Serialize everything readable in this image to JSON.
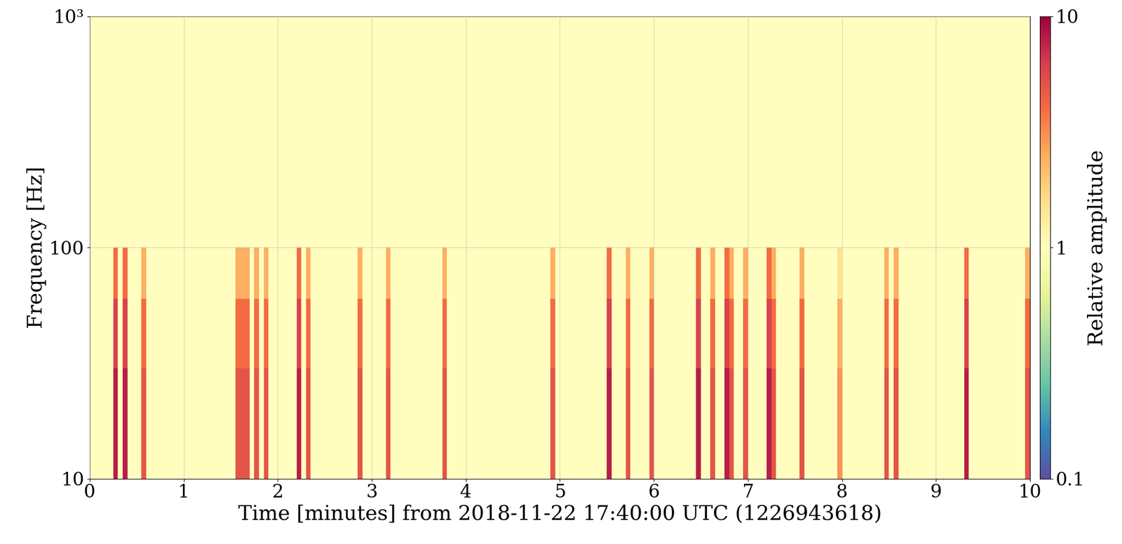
{
  "chart_data": {
    "type": "heatmap",
    "xlabel": "Time [minutes] from 2018-11-22 17:40:00 UTC (1226943618)",
    "ylabel": "Frequency [Hz]",
    "xlim": [
      0,
      10
    ],
    "xticks": [
      0,
      1,
      2,
      3,
      4,
      5,
      6,
      7,
      8,
      9,
      10
    ],
    "ylim": [
      10,
      1000
    ],
    "yticks": [
      10,
      100,
      {
        "value": 1000,
        "label": "10³"
      }
    ],
    "log": "y",
    "grid": true,
    "y_edges": [
      10,
      30,
      60,
      100,
      1000
    ],
    "cells": [
      [
        1,
        1,
        1,
        1,
        1,
        8,
        1,
        8,
        1,
        1,
        1,
        5,
        1,
        1,
        1,
        1,
        1,
        1,
        1,
        1,
        1,
        1,
        1,
        1,
        1,
        1,
        1,
        1,
        1,
        1,
        1,
        5,
        5,
        5,
        1,
        5,
        1,
        5,
        1,
        1,
        1,
        1,
        1,
        1,
        8,
        1,
        5,
        1,
        1,
        1,
        1,
        1,
        1,
        1,
        1,
        1,
        1,
        5,
        1,
        1,
        1,
        1,
        1,
        5,
        1,
        1,
        1,
        1,
        1,
        1,
        1,
        1,
        1,
        1,
        1,
        5,
        1,
        1,
        1,
        1,
        1,
        1,
        1,
        1,
        1,
        1,
        1,
        1,
        1,
        1,
        1,
        1,
        1,
        1,
        1,
        1,
        1,
        1,
        5,
        1,
        1,
        1,
        1,
        1,
        1,
        1,
        1,
        1,
        1,
        1,
        8,
        1,
        1,
        1,
        5,
        1,
        1,
        1,
        1,
        5,
        1,
        1,
        1,
        1,
        1,
        1,
        1,
        1,
        1,
        8,
        1,
        1,
        5,
        1,
        1,
        8,
        5,
        1,
        1,
        5,
        1,
        1,
        1,
        1,
        8,
        5,
        1,
        1,
        1,
        1,
        1,
        5,
        1,
        1,
        1,
        1,
        1,
        1,
        1,
        3,
        1,
        1,
        1,
        1,
        1,
        1,
        1,
        1,
        1,
        5,
        1,
        5,
        1,
        1,
        1,
        1,
        1,
        1,
        1,
        1,
        1,
        1,
        1,
        1,
        1,
        1,
        8,
        1,
        1,
        1,
        1,
        1,
        1,
        1,
        1,
        1,
        1,
        1,
        1,
        5
      ],
      [
        1,
        1,
        1,
        1,
        1,
        6,
        1,
        6,
        1,
        1,
        1,
        4,
        1,
        1,
        1,
        1,
        1,
        1,
        1,
        1,
        1,
        1,
        1,
        1,
        1,
        1,
        1,
        1,
        1,
        1,
        1,
        4,
        4,
        4,
        1,
        4,
        1,
        4,
        1,
        1,
        1,
        1,
        1,
        1,
        6,
        1,
        4,
        1,
        1,
        1,
        1,
        1,
        1,
        1,
        1,
        1,
        1,
        4,
        1,
        1,
        1,
        1,
        1,
        4,
        1,
        1,
        1,
        1,
        1,
        1,
        1,
        1,
        1,
        1,
        1,
        4,
        1,
        1,
        1,
        1,
        1,
        1,
        1,
        1,
        1,
        1,
        1,
        1,
        1,
        1,
        1,
        1,
        1,
        1,
        1,
        1,
        1,
        1,
        4,
        1,
        1,
        1,
        1,
        1,
        1,
        1,
        1,
        1,
        1,
        1,
        6,
        1,
        1,
        1,
        4,
        1,
        1,
        1,
        1,
        4,
        1,
        1,
        1,
        1,
        1,
        1,
        1,
        1,
        1,
        6,
        1,
        1,
        4,
        1,
        1,
        6,
        4,
        1,
        1,
        4,
        1,
        1,
        1,
        1,
        6,
        4,
        1,
        1,
        1,
        1,
        1,
        4,
        1,
        1,
        1,
        1,
        1,
        1,
        1,
        2.5,
        1,
        1,
        1,
        1,
        1,
        1,
        1,
        1,
        1,
        4,
        1,
        4,
        1,
        1,
        1,
        1,
        1,
        1,
        1,
        1,
        1,
        1,
        1,
        1,
        1,
        1,
        6,
        1,
        1,
        1,
        1,
        1,
        1,
        1,
        1,
        1,
        1,
        1,
        1,
        4
      ],
      [
        1,
        1,
        1,
        1,
        1,
        4,
        1,
        4,
        1,
        1,
        1,
        2.5,
        1,
        1,
        1,
        1,
        1,
        1,
        1,
        1,
        1,
        1,
        1,
        1,
        1,
        1,
        1,
        1,
        1,
        1,
        1,
        2.5,
        2.5,
        2.5,
        1,
        2.5,
        1,
        2.5,
        1,
        1,
        1,
        1,
        1,
        1,
        4,
        1,
        2.5,
        1,
        1,
        1,
        1,
        1,
        1,
        1,
        1,
        1,
        1,
        2.5,
        1,
        1,
        1,
        1,
        1,
        2.5,
        1,
        1,
        1,
        1,
        1,
        1,
        1,
        1,
        1,
        1,
        1,
        2.5,
        1,
        1,
        1,
        1,
        1,
        1,
        1,
        1,
        1,
        1,
        1,
        1,
        1,
        1,
        1,
        1,
        1,
        1,
        1,
        1,
        1,
        1,
        2.5,
        1,
        1,
        1,
        1,
        1,
        1,
        1,
        1,
        1,
        1,
        1,
        4,
        1,
        1,
        1,
        2.5,
        1,
        1,
        1,
        1,
        2.5,
        1,
        1,
        1,
        1,
        1,
        1,
        1,
        1,
        1,
        4,
        1,
        1,
        2.5,
        1,
        1,
        4,
        2.5,
        1,
        1,
        2.5,
        1,
        1,
        1,
        1,
        4,
        2.5,
        1,
        1,
        1,
        1,
        1,
        2.5,
        1,
        1,
        1,
        1,
        1,
        1,
        1,
        1.5,
        1,
        1,
        1,
        1,
        1,
        1,
        1,
        1,
        1,
        2.5,
        1,
        2.5,
        1,
        1,
        1,
        1,
        1,
        1,
        1,
        1,
        1,
        1,
        1,
        1,
        1,
        1,
        4,
        1,
        1,
        1,
        1,
        1,
        1,
        1,
        1,
        1,
        1,
        1,
        1,
        2.5
      ],
      [
        1,
        1,
        1,
        1,
        1,
        1,
        1,
        1,
        1,
        1,
        1,
        1,
        1,
        1,
        1,
        1,
        1,
        1,
        1,
        1,
        1,
        1,
        1,
        1,
        1,
        1,
        1,
        1,
        1,
        1,
        1,
        1,
        1,
        1,
        1,
        1,
        1,
        1,
        1,
        1,
        1,
        1,
        1,
        1,
        1,
        1,
        1,
        1,
        1,
        1,
        1,
        1,
        1,
        1,
        1,
        1,
        1,
        1,
        1,
        1,
        1,
        1,
        1,
        1,
        1,
        1,
        1,
        1,
        1,
        1,
        1,
        1,
        1,
        1,
        1,
        1,
        1,
        1,
        1,
        1,
        1,
        1,
        1,
        1,
        1,
        1,
        1,
        1,
        1,
        1,
        1,
        1,
        1,
        1,
        1,
        1,
        1,
        1,
        1,
        1,
        1,
        1,
        1,
        1,
        1,
        1,
        1,
        1,
        1,
        1,
        1,
        1,
        1,
        1,
        1,
        1,
        1,
        1,
        1,
        1,
        1,
        1,
        1,
        1,
        1,
        1,
        1,
        1,
        1,
        1,
        1,
        1,
        1,
        1,
        1,
        1,
        1,
        1,
        1,
        1,
        1,
        1,
        1,
        1,
        1,
        1,
        1,
        1,
        1,
        1,
        1,
        1,
        1,
        1,
        1,
        1,
        1,
        1,
        1,
        1,
        1,
        1,
        1,
        1,
        1,
        1,
        1,
        1,
        1,
        1,
        1,
        1,
        1,
        1,
        1,
        1,
        1,
        1,
        1,
        1,
        1,
        1,
        1,
        1,
        1,
        1,
        1,
        1,
        1,
        1,
        1,
        1,
        1,
        1,
        1,
        1,
        1,
        1,
        1,
        1
      ]
    ],
    "colorbar": {
      "label": "Relative amplitude",
      "range": [
        0.1,
        10
      ],
      "ticks": [
        0.1,
        1,
        10
      ]
    }
  }
}
